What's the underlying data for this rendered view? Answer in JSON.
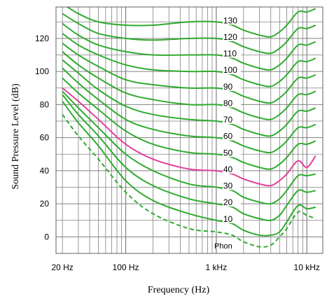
{
  "chart_data": {
    "type": "line",
    "xlabel": "Frequency (Hz)",
    "ylabel": "Sound Pressure Level (dB)",
    "x_scale": "log",
    "xlim": [
      17,
      15000
    ],
    "ylim": [
      -10,
      139
    ],
    "grid": true,
    "x_ticks": [
      {
        "value": 20,
        "label": "20 Hz"
      },
      {
        "value": 100,
        "label": "100 Hz"
      },
      {
        "value": 1000,
        "label": "1 kHz"
      },
      {
        "value": 10000,
        "label": "10 kHz"
      }
    ],
    "y_ticks": [
      {
        "value": 0,
        "label": "0"
      },
      {
        "value": 20,
        "label": "20"
      },
      {
        "value": 40,
        "label": "40"
      },
      {
        "value": 60,
        "label": "60"
      },
      {
        "value": 80,
        "label": "80"
      },
      {
        "value": 100,
        "label": "100"
      },
      {
        "value": 120,
        "label": "120"
      }
    ],
    "unit_label": "Phon",
    "colors": {
      "curve": "#2eab2e",
      "highlight": "#e0409a",
      "grid": "#808080"
    },
    "highlight_phon": 40,
    "threshold_curve": {
      "style": "dashed",
      "x": [
        20,
        30,
        50,
        100,
        200,
        500,
        1000,
        1500,
        2000,
        3000,
        4000,
        5000,
        6000,
        8000,
        10000,
        12500
      ],
      "y": [
        74,
        61,
        47,
        27,
        14,
        5,
        3,
        1,
        -3,
        -6,
        -5,
        0,
        5,
        15,
        13,
        11
      ]
    },
    "curve_frequencies": [
      20,
      30,
      50,
      100,
      200,
      500,
      1000,
      1500,
      2000,
      3000,
      4000,
      5000,
      6000,
      8000,
      10000,
      12500
    ],
    "series": [
      {
        "phon": 10,
        "y": [
          82,
          69,
          55,
          34,
          22,
          14,
          10,
          8,
          4,
          1,
          1,
          3,
          9,
          19,
          17,
          18
        ]
      },
      {
        "phon": 20,
        "y": [
          86,
          74,
          61,
          42,
          31,
          23,
          20,
          18,
          14,
          11,
          10,
          13,
          19,
          28,
          27,
          28
        ]
      },
      {
        "phon": 30,
        "y": [
          88,
          78,
          66,
          50,
          40,
          32,
          30,
          28,
          24,
          21,
          20,
          23,
          28,
          37,
          37,
          38
        ]
      },
      {
        "phon": 40,
        "y": [
          90,
          82,
          71,
          56,
          47,
          41,
          40,
          38,
          35,
          32,
          31,
          34,
          38,
          46,
          42,
          49
        ]
      },
      {
        "phon": 50,
        "y": [
          96,
          87,
          77,
          64,
          56,
          51,
          50,
          48,
          45,
          42,
          41,
          44,
          48,
          56,
          56,
          58
        ]
      },
      {
        "phon": 60,
        "y": [
          102,
          93,
          83,
          71,
          65,
          61,
          60,
          58,
          55,
          52,
          51,
          54,
          58,
          66,
          66,
          68
        ]
      },
      {
        "phon": 70,
        "y": [
          107,
          99,
          89,
          79,
          74,
          71,
          70,
          68,
          65,
          62,
          61,
          64,
          68,
          76,
          76,
          78
        ]
      },
      {
        "phon": 80,
        "y": [
          112,
          104,
          96,
          87,
          83,
          80,
          80,
          78,
          75,
          72,
          71,
          74,
          78,
          86,
          86,
          88
        ]
      },
      {
        "phon": 90,
        "y": [
          117,
          110,
          103,
          95,
          92,
          90,
          90,
          88,
          85,
          82,
          81,
          84,
          88,
          96,
          96,
          98
        ]
      },
      {
        "phon": 100,
        "y": [
          123,
          116,
          110,
          104,
          101,
          100,
          100,
          98,
          95,
          92,
          91,
          94,
          98,
          106,
          106,
          108
        ]
      },
      {
        "phon": 110,
        "y": [
          129,
          122,
          116,
          112,
          110,
          110,
          110,
          108,
          105,
          102,
          101,
          104,
          108,
          116,
          116,
          118
        ]
      },
      {
        "phon": 120,
        "y": [
          135,
          129,
          123,
          120,
          119,
          120,
          120,
          118,
          115,
          112,
          111,
          114,
          118,
          126,
          126,
          128
        ]
      },
      {
        "phon": 130,
        "y": [
          141,
          135,
          130,
          128,
          128,
          130,
          130,
          128,
          125,
          122,
          121,
          124,
          128,
          136,
          136,
          138
        ]
      }
    ]
  }
}
